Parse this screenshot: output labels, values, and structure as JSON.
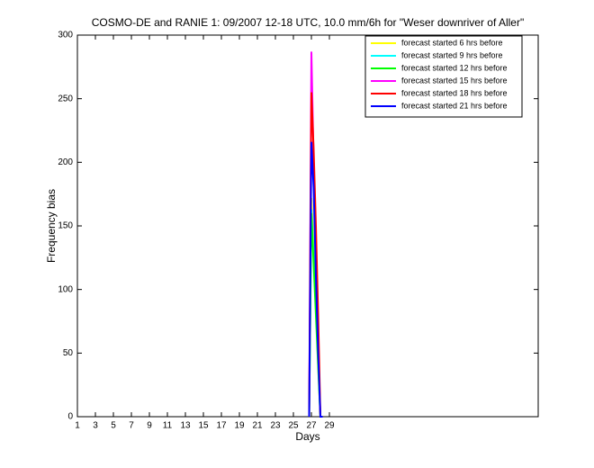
{
  "chart_data": {
    "type": "line",
    "title": "COSMO-DE and RANIE 1: 09/2007 12-18 UTC, 10.0 mm/6h for \"Weser downriver of Aller\"",
    "x_label": "Days",
    "y_label": "Frequency bias",
    "x": [
      26.75,
      27,
      27.25,
      27.5,
      27.75,
      28,
      28.25
    ],
    "series": [
      {
        "name": "forecast started 6 hrs before",
        "color": "#ffff00",
        "values": [
          0,
          172,
          130,
          90,
          40,
          0,
          0
        ]
      },
      {
        "name": "forecast started 9 hrs before",
        "color": "#00ffff",
        "values": [
          0,
          163,
          125,
          85,
          45,
          0,
          0
        ]
      },
      {
        "name": "forecast started 12 hrs before",
        "color": "#00ff00",
        "values": [
          0,
          160,
          120,
          80,
          40,
          0,
          0
        ]
      },
      {
        "name": "forecast started 15 hrs before",
        "color": "#ff00ff",
        "values": [
          0,
          287,
          200,
          120,
          60,
          0,
          0
        ]
      },
      {
        "name": "forecast started 18 hrs before",
        "color": "#ff0000",
        "values": [
          0,
          255,
          210,
          150,
          80,
          0,
          0
        ]
      },
      {
        "name": "forecast started 21 hrs before",
        "color": "#0000ff",
        "values": [
          0,
          216,
          180,
          110,
          50,
          0,
          0
        ]
      }
    ],
    "xlim": [
      1,
      52.2
    ],
    "xticks": [
      1,
      3,
      5,
      7,
      9,
      11,
      13,
      15,
      17,
      19,
      21,
      23,
      25,
      27,
      29
    ],
    "ylim": [
      0,
      300
    ],
    "yticks": [
      0,
      50,
      100,
      150,
      200,
      250,
      300
    ],
    "legend": "top-right"
  }
}
